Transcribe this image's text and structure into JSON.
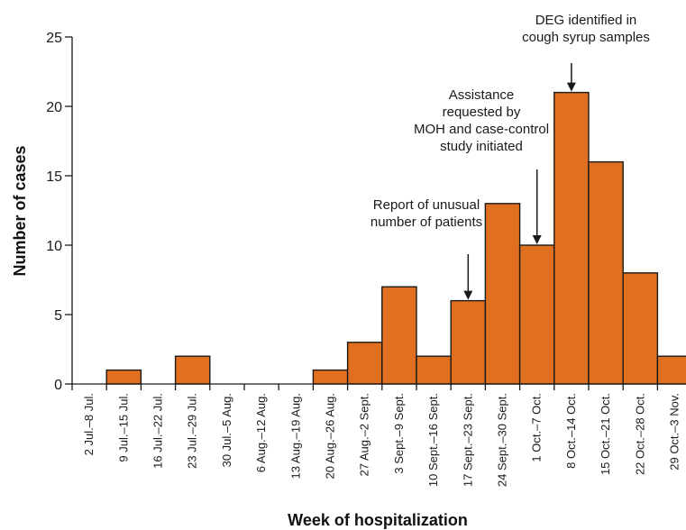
{
  "chart_data": {
    "type": "bar",
    "title": "",
    "xlabel": "Week of hospitalization",
    "ylabel": "Number of cases",
    "ylim": [
      0,
      25
    ],
    "yticks": [
      0,
      5,
      10,
      15,
      20,
      25
    ],
    "grid": false,
    "bar_color": "#e07020",
    "bar_edge_color": "#1a1a1a",
    "categories": [
      "2 Jul.–8 Jul.",
      "9 Jul.–15 Jul.",
      "16 Jul.–22 Jul.",
      "23 Jul.–29 Jul.",
      "30 Jul.–5 Aug.",
      "6 Aug.–12 Aug.",
      "13 Aug.–19 Aug.",
      "20 Aug.–26 Aug.",
      "27 Aug.–2 Sept.",
      "3 Sept.–9 Sept.",
      "10 Sept.–16 Sept.",
      "17 Sept.–23 Sept.",
      "24 Sept.–30 Sept.",
      "1 Oct.–7 Oct.",
      "8 Oct.–14 Oct.",
      "15 Oct.–21 Oct.",
      "22 Oct.–28 Oct.",
      "29 Oct.–3 Nov."
    ],
    "values": [
      0,
      1,
      0,
      2,
      0,
      0,
      0,
      1,
      3,
      7,
      2,
      6,
      13,
      10,
      21,
      16,
      8,
      2
    ],
    "annotations": [
      {
        "lines": [
          "Report of unusual",
          "number of patients"
        ],
        "category_index": 11
      },
      {
        "lines": [
          "Assistance",
          "requested by",
          "MOH and case-control",
          "study initiated"
        ],
        "category_index": 13
      },
      {
        "lines": [
          "DEG identified in",
          "cough syrup samples"
        ],
        "category_index": 14
      }
    ]
  }
}
